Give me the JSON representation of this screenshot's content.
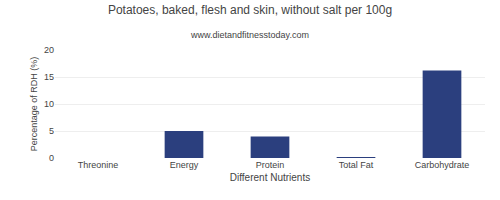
{
  "chart_data": {
    "type": "bar",
    "title": "Potatoes, baked, flesh and skin, without salt per 100g",
    "subtitle": "www.dietandfitnesstoday.com",
    "xlabel": "Different Nutrients",
    "ylabel": "Percentage of RDH (%)",
    "categories": [
      "Threonine",
      "Energy",
      "Protein",
      "Total Fat",
      "Carbohydrate"
    ],
    "values": [
      0.0,
      5.0,
      4.0,
      0.1,
      16.2
    ],
    "color": "#2b3f7e",
    "ylim": [
      0,
      20
    ],
    "yticks": [
      0,
      5,
      10,
      15,
      20
    ],
    "grid": true
  }
}
